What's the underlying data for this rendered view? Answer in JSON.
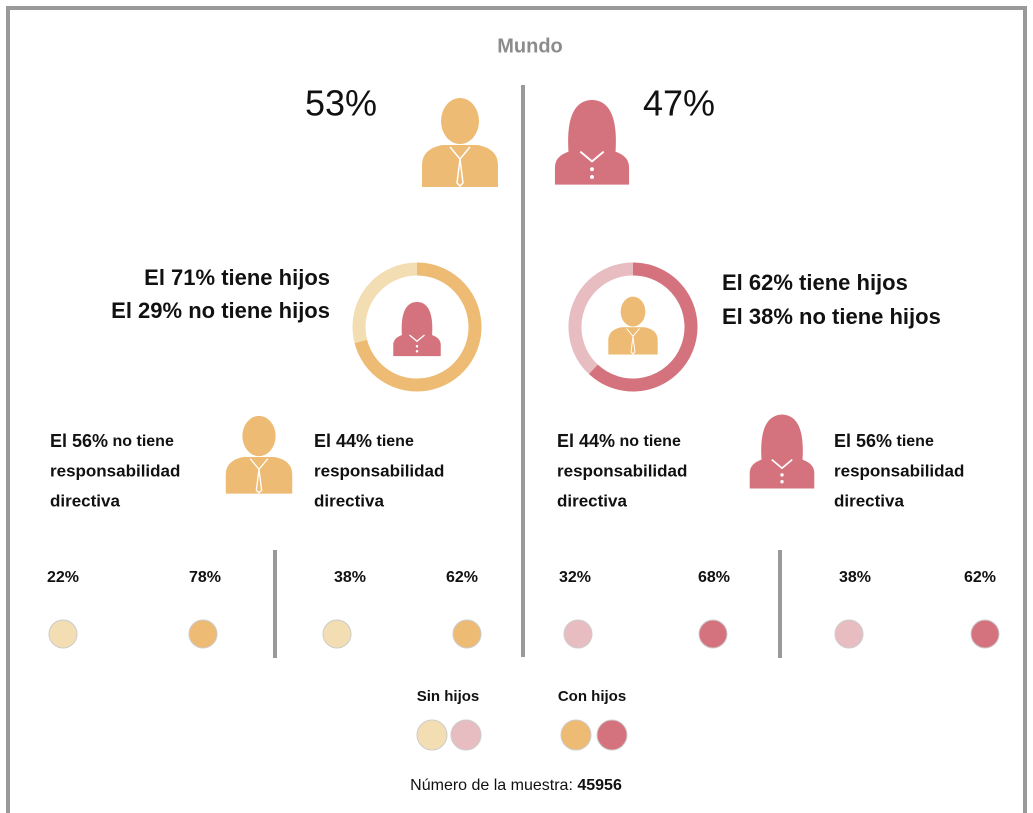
{
  "title": "Mundo",
  "men": {
    "value": 53,
    "label": "53%",
    "color": "#EDBB74",
    "light_color": "#F3DDB2"
  },
  "women": {
    "value": 47,
    "label": "47%",
    "color": "#D4737D",
    "light_color": "#E8BDC1"
  },
  "men_children": {
    "with": {
      "value": 71,
      "label": "El 71% tiene hijos"
    },
    "without": {
      "value": 29,
      "label": "El 29% no tiene hijos"
    }
  },
  "women_children": {
    "with": {
      "value": 62,
      "label": "El 62% tiene hijos"
    },
    "without": {
      "value": 38,
      "label": "El 38% no tiene hijos"
    }
  },
  "management": [
    {
      "value": 56,
      "lead": "El 56%",
      "lines": [
        "no tiene",
        "responsabilidad",
        "directiva"
      ],
      "colors": [
        "#F3DDB2",
        "#EDBB74"
      ],
      "split": [
        {
          "value": 22,
          "label": "22%"
        },
        {
          "value": 78,
          "label": "78%"
        }
      ]
    },
    {
      "value": 44,
      "lead": "El 44%",
      "lines": [
        "tiene",
        "responsabilidad",
        "directiva"
      ],
      "colors": [
        "#F3DDB2",
        "#EDBB74"
      ],
      "split": [
        {
          "value": 38,
          "label": "38%"
        },
        {
          "value": 62,
          "label": "62%"
        }
      ]
    },
    {
      "value": 44,
      "lead": "El 44%",
      "lines": [
        "no tiene",
        "responsabilidad",
        "directiva"
      ],
      "colors": [
        "#E8BDC1",
        "#D4737D"
      ],
      "split": [
        {
          "value": 32,
          "label": "32%"
        },
        {
          "value": 68,
          "label": "68%"
        }
      ]
    },
    {
      "value": 56,
      "lead": "El 56%",
      "lines": [
        "tiene",
        "responsabilidad",
        "directiva"
      ],
      "colors": [
        "#E8BDC1",
        "#D4737D"
      ],
      "split": [
        {
          "value": 38,
          "label": "38%"
        },
        {
          "value": 62,
          "label": "62%"
        }
      ]
    }
  ],
  "legend": {
    "without": "Sin hijos",
    "with": "Con hijos"
  },
  "footer": {
    "label": "Número de la muestra:",
    "sample": 45956
  }
}
